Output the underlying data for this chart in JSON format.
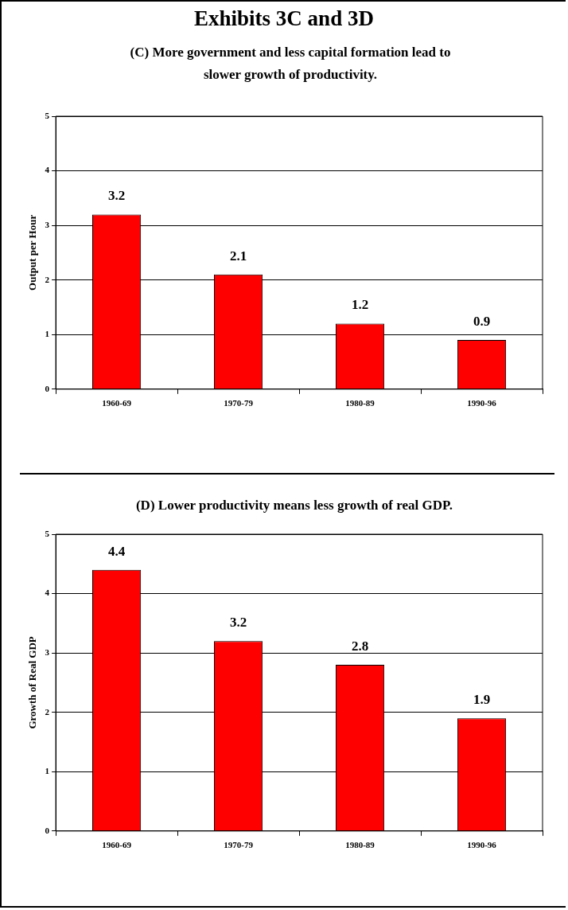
{
  "chart_data": [
    {
      "type": "bar",
      "title": "Exhibits 3C and 3D",
      "subtitle": "(C) More government and less capital formation lead to slower growth of productivity.",
      "ylabel": "Output per Hour",
      "categories": [
        "1960-69",
        "1970-79",
        "1980-89",
        "1990-96"
      ],
      "values": [
        3.2,
        2.1,
        1.2,
        0.9
      ],
      "color": "#ff0000",
      "ylim": [
        0,
        5
      ],
      "yticks": [
        0,
        1,
        2,
        3,
        4,
        5
      ],
      "grid": "y",
      "data_labels": true
    },
    {
      "type": "bar",
      "title": "(D) Lower productivity means less growth of real GDP.",
      "ylabel": "Growth of Real GDP",
      "categories": [
        "1960-69",
        "1970-79",
        "1980-89",
        "1990-96"
      ],
      "values": [
        4.4,
        3.2,
        2.8,
        1.9
      ],
      "color": "#ff0000",
      "ylim": [
        0,
        5
      ],
      "yticks": [
        0,
        1,
        2,
        3,
        4,
        5
      ],
      "grid": "y",
      "data_labels": true
    }
  ]
}
